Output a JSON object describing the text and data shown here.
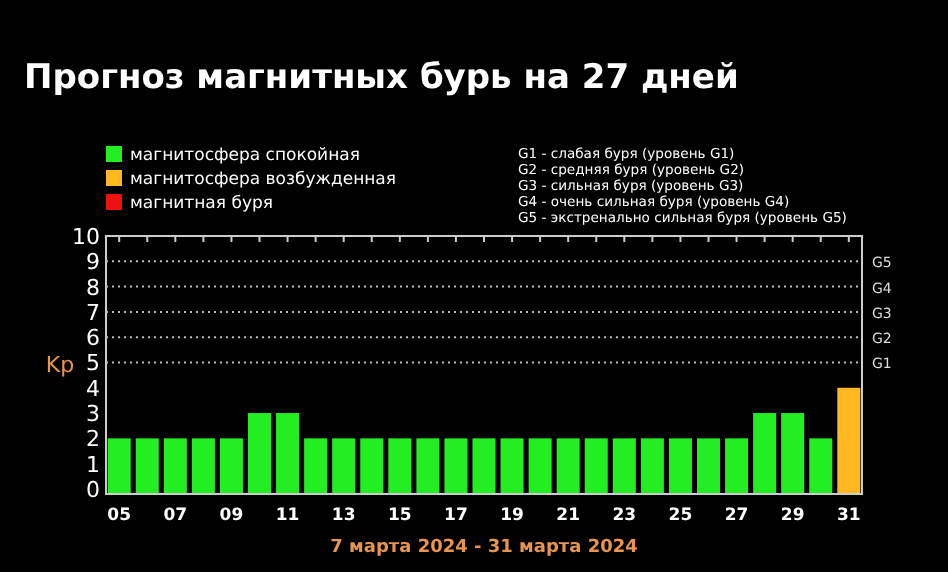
{
  "chart_data": {
    "type": "bar",
    "title": "Прогноз магнитных бурь на 27 дней",
    "xlabel": "7 марта 2024 - 31 марта 2024",
    "ylabel": "Kp",
    "categories": [
      "05",
      null,
      "07",
      null,
      "09",
      null,
      "11",
      null,
      "13",
      null,
      "15",
      null,
      "17",
      null,
      "19",
      null,
      "21",
      null,
      "23",
      null,
      "25",
      null,
      "27",
      null,
      "29",
      null,
      "31"
    ],
    "series": [
      {
        "name": "магнитосфера спокойная",
        "color": "#22ee22",
        "values": [
          2,
          2,
          2,
          2,
          2,
          3,
          3,
          2,
          2,
          2,
          2,
          2,
          2,
          2,
          2,
          2,
          2,
          2,
          2,
          2,
          2,
          2,
          2,
          3,
          3,
          2,
          null
        ]
      },
      {
        "name": "магнитосфера возбужденная",
        "color": "#ffb820",
        "values": [
          null,
          null,
          null,
          null,
          null,
          null,
          null,
          null,
          null,
          null,
          null,
          null,
          null,
          null,
          null,
          null,
          null,
          null,
          null,
          null,
          null,
          null,
          null,
          null,
          null,
          null,
          4
        ]
      },
      {
        "name": "магнитная буря",
        "color": "#ee1111",
        "values": [
          null,
          null,
          null,
          null,
          null,
          null,
          null,
          null,
          null,
          null,
          null,
          null,
          null,
          null,
          null,
          null,
          null,
          null,
          null,
          null,
          null,
          null,
          null,
          null,
          null,
          null,
          null
        ]
      }
    ],
    "ylim": [
      -0.2,
      10
    ],
    "yticks": [
      0,
      1,
      2,
      3,
      4,
      5,
      6,
      7,
      8,
      9,
      10
    ],
    "ref_lines": [
      {
        "axis": "y",
        "value": 5,
        "label": "G1",
        "line_style": "dotted"
      },
      {
        "axis": "y",
        "value": 6,
        "label": "G2",
        "line_style": "dotted"
      },
      {
        "axis": "y",
        "value": 7,
        "label": "G3",
        "line_style": "dotted"
      },
      {
        "axis": "y",
        "value": 8,
        "label": "G4",
        "line_style": "dotted"
      },
      {
        "axis": "y",
        "value": 9,
        "label": "G5",
        "line_style": "dotted"
      }
    ],
    "annotations": [
      "G1 - слабая буря (уровень G1)",
      "G2 - средняя буря (уровень G2)",
      "G3 - сильная буря (уровень G3)",
      "G4 - очень сильная буря (уровень G4)",
      "G5 - экстренально сильная буря (уровень G5)"
    ],
    "legend": "top left"
  }
}
